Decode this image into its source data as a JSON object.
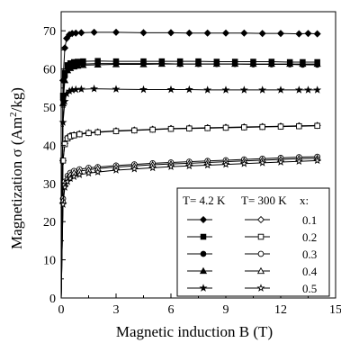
{
  "chart_data": {
    "type": "line",
    "xlabel": "Magnetic induction  B (T)",
    "ylabel_main": "Magnetization  σ  (Am",
    "ylabel_sup": "2",
    "ylabel_end": "/kg)",
    "xlim": [
      0,
      15
    ],
    "ylim": [
      0,
      75
    ],
    "x_ticks": [
      0,
      3,
      6,
      9,
      12,
      15
    ],
    "y_ticks": [
      0,
      10,
      20,
      30,
      40,
      50,
      60,
      70
    ],
    "x_tick_labels": [
      "0",
      "3",
      "6",
      "9",
      "12",
      "15"
    ],
    "y_tick_labels": [
      "0",
      "10",
      "20",
      "30",
      "40",
      "50",
      "60",
      "70"
    ],
    "grid": false,
    "legend": {
      "placement": "bottom-right",
      "header_low": "T= 4.2 K",
      "header_high": "T= 300 K",
      "header_x": "x:",
      "x_values": [
        "0.1",
        "0.2",
        "0.3",
        "0.4",
        "0.5"
      ]
    },
    "series": [
      {
        "x_value": "0.1",
        "temperature": "4.2 K",
        "marker": "diamond",
        "filled": true,
        "x": [
          0,
          0.1,
          0.2,
          0.3,
          0.45,
          0.6,
          0.8,
          1.1,
          1.8,
          3,
          4.5,
          6,
          7,
          8,
          9,
          10,
          11,
          12,
          13,
          13.5,
          14
        ],
        "y": [
          0,
          57,
          65.5,
          68,
          69,
          69.3,
          69.4,
          69.5,
          69.6,
          69.6,
          69.5,
          69.5,
          69.4,
          69.4,
          69.4,
          69.4,
          69.3,
          69.3,
          69.2,
          69.3,
          69.2
        ]
      },
      {
        "x_value": "0.2",
        "temperature": "4.2 K",
        "marker": "square",
        "filled": true,
        "x": [
          0,
          0.1,
          0.2,
          0.35,
          0.5,
          0.7,
          0.9,
          1.2,
          2,
          3,
          4.5,
          5.5,
          6.5,
          7.5,
          8.5,
          9.5,
          10.5,
          11.5,
          12.5,
          13.2,
          14
        ],
        "y": [
          0,
          53,
          59,
          61,
          61.5,
          61.8,
          61.9,
          62,
          62.1,
          62,
          62,
          62,
          62,
          62,
          61.9,
          61.9,
          61.9,
          61.9,
          61.8,
          61.8,
          61.8
        ]
      },
      {
        "x_value": "0.3",
        "temperature": "4.2 K",
        "marker": "circle",
        "filled": true,
        "x": [
          0,
          0.1,
          0.2,
          0.35,
          0.5,
          0.7,
          0.9,
          1.2,
          2,
          3,
          4.5,
          5.5,
          6.5,
          7.5,
          8.5,
          9.5,
          10.5,
          11.5,
          12.5,
          13.2,
          14
        ],
        "y": [
          0,
          52,
          58,
          60.3,
          60.8,
          61.1,
          61.2,
          61.3,
          61.4,
          61.4,
          61.4,
          61.4,
          61.3,
          61.3,
          61.3,
          61.3,
          61.2,
          61.2,
          61.2,
          61.1,
          61.1
        ]
      },
      {
        "x_value": "0.4",
        "temperature": "4.2 K",
        "marker": "triangle",
        "filled": true,
        "x": [
          0,
          0.1,
          0.2,
          0.35,
          0.5,
          0.7,
          0.9,
          1.2,
          2,
          3,
          4.5,
          5.5,
          6.5,
          7.5,
          8.5,
          9.5,
          10.5,
          11.5,
          12.5,
          13.2,
          14
        ],
        "y": [
          0,
          51,
          57,
          59.6,
          60.2,
          60.6,
          60.8,
          61,
          61.1,
          61.2,
          61.2,
          61.3,
          61.3,
          61.3,
          61.3,
          61.3,
          61.3,
          61.3,
          61.3,
          61.3,
          61.3
        ]
      },
      {
        "x_value": "0.5",
        "temperature": "4.2 K",
        "marker": "star",
        "filled": true,
        "x": [
          0,
          0.1,
          0.2,
          0.3,
          0.45,
          0.6,
          0.8,
          1.1,
          1.8,
          3,
          4.5,
          6,
          7,
          8,
          9,
          10,
          11,
          12,
          13,
          13.5,
          14
        ],
        "y": [
          0,
          46,
          51.5,
          53.5,
          54.2,
          54.5,
          54.6,
          54.7,
          54.8,
          54.7,
          54.6,
          54.6,
          54.6,
          54.5,
          54.5,
          54.5,
          54.5,
          54.5,
          54.5,
          54.5,
          54.5
        ]
      },
      {
        "x_value": "0.1",
        "temperature": "300 K",
        "marker": "diamond",
        "filled": false,
        "x": [
          0,
          0.1,
          0.2,
          0.35,
          0.5,
          0.7,
          1,
          1.5,
          2,
          3,
          4,
          5,
          6,
          7,
          8,
          9,
          10,
          11,
          12,
          13,
          14
        ],
        "y": [
          0,
          36,
          40.5,
          42,
          42.5,
          42.7,
          43,
          43.3,
          43.5,
          43.8,
          44,
          44.2,
          44.4,
          44.5,
          44.6,
          44.7,
          44.8,
          44.9,
          45,
          45.1,
          45.2
        ]
      },
      {
        "x_value": "0.2",
        "temperature": "300 K",
        "marker": "square",
        "filled": false,
        "x": [
          0,
          0.1,
          0.2,
          0.35,
          0.5,
          0.7,
          1,
          1.5,
          2,
          3,
          4,
          5,
          6,
          7,
          8,
          9,
          10,
          11,
          12,
          13,
          14
        ],
        "y": [
          0,
          36,
          40.3,
          41.8,
          42.3,
          42.6,
          42.9,
          43.2,
          43.4,
          43.7,
          43.9,
          44.1,
          44.3,
          44.4,
          44.5,
          44.6,
          44.7,
          44.8,
          44.9,
          45,
          45.1
        ]
      },
      {
        "x_value": "0.3",
        "temperature": "300 K",
        "marker": "circle",
        "filled": false,
        "x": [
          0,
          0.1,
          0.2,
          0.35,
          0.5,
          0.7,
          1,
          1.5,
          2,
          3,
          4,
          5,
          6,
          7,
          8,
          9,
          10,
          11,
          12,
          13,
          14
        ],
        "y": [
          0,
          26,
          30.5,
          32,
          32.8,
          33.3,
          33.7,
          34.1,
          34.3,
          34.7,
          35,
          35.3,
          35.5,
          35.7,
          35.9,
          36.1,
          36.3,
          36.5,
          36.7,
          36.9,
          37
        ]
      },
      {
        "x_value": "0.4",
        "temperature": "300 K",
        "marker": "triangle",
        "filled": false,
        "x": [
          0,
          0.1,
          0.2,
          0.35,
          0.5,
          0.7,
          1,
          1.5,
          2,
          3,
          4,
          5,
          6,
          7,
          8,
          9,
          10,
          11,
          12,
          13,
          14
        ],
        "y": [
          0,
          25.5,
          30,
          31.5,
          32.3,
          32.8,
          33.2,
          33.6,
          33.9,
          34.3,
          34.6,
          34.9,
          35.1,
          35.3,
          35.5,
          35.7,
          35.9,
          36.1,
          36.3,
          36.5,
          36.6
        ]
      },
      {
        "x_value": "0.5",
        "temperature": "300 K",
        "marker": "star",
        "filled": false,
        "x": [
          0,
          0.1,
          0.2,
          0.35,
          0.5,
          0.7,
          1,
          1.5,
          2,
          3,
          4,
          5,
          6,
          7,
          8,
          9,
          10,
          11,
          12,
          13,
          14
        ],
        "y": [
          0,
          24.5,
          29,
          30.5,
          31.3,
          31.8,
          32.3,
          32.7,
          33,
          33.5,
          33.8,
          34.1,
          34.4,
          34.6,
          34.8,
          35,
          35.2,
          35.4,
          35.6,
          35.8,
          36
        ]
      }
    ]
  }
}
